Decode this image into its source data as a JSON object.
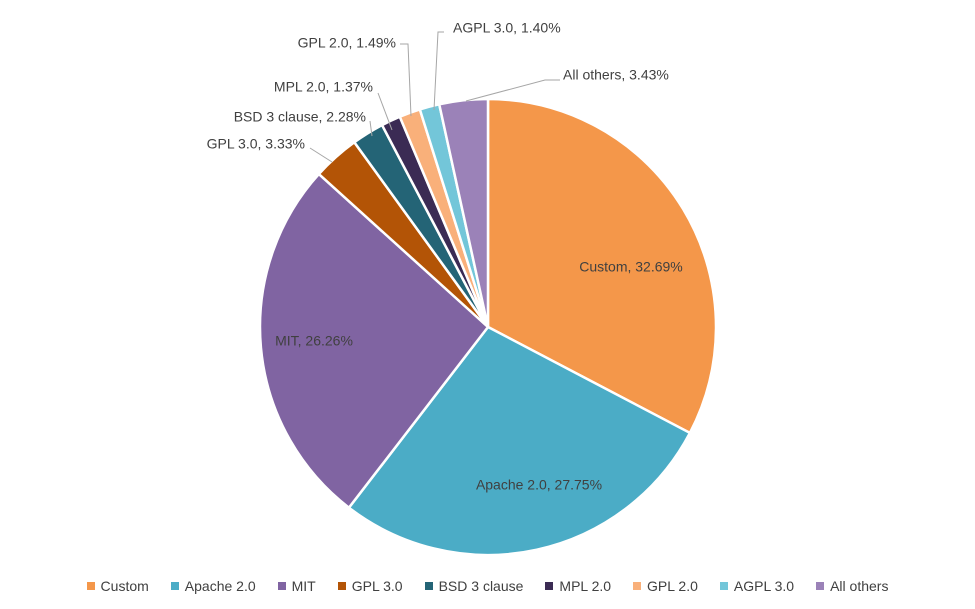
{
  "chart_data": {
    "type": "pie",
    "title": "",
    "legend_position": "bottom",
    "slices": [
      {
        "name": "Custom",
        "value": 32.69,
        "label": "Custom, 32.69%",
        "color": "#F4974A"
      },
      {
        "name": "Apache 2.0",
        "value": 27.75,
        "label": "Apache 2.0, 27.75%",
        "color": "#4BACC6"
      },
      {
        "name": "MIT",
        "value": 26.26,
        "label": "MIT, 26.26%",
        "color": "#8064A2"
      },
      {
        "name": "GPL 3.0",
        "value": 3.33,
        "label": "GPL 3.0, 3.33%",
        "color": "#B35406"
      },
      {
        "name": "BSD 3 clause",
        "value": 2.28,
        "label": "BSD 3 clause, 2.28%",
        "color": "#246476"
      },
      {
        "name": "MPL 2.0",
        "value": 1.37,
        "label": "MPL 2.0, 1.37%",
        "color": "#3B2B54"
      },
      {
        "name": "GPL 2.0",
        "value": 1.49,
        "label": "GPL 2.0, 1.49%",
        "color": "#F9B07A"
      },
      {
        "name": "AGPL 3.0",
        "value": 1.4,
        "label": "AGPL 3.0, 1.40%",
        "color": "#73C6D9"
      },
      {
        "name": "All others",
        "value": 3.43,
        "label": "All others, 3.43%",
        "color": "#9B82B8"
      }
    ]
  }
}
